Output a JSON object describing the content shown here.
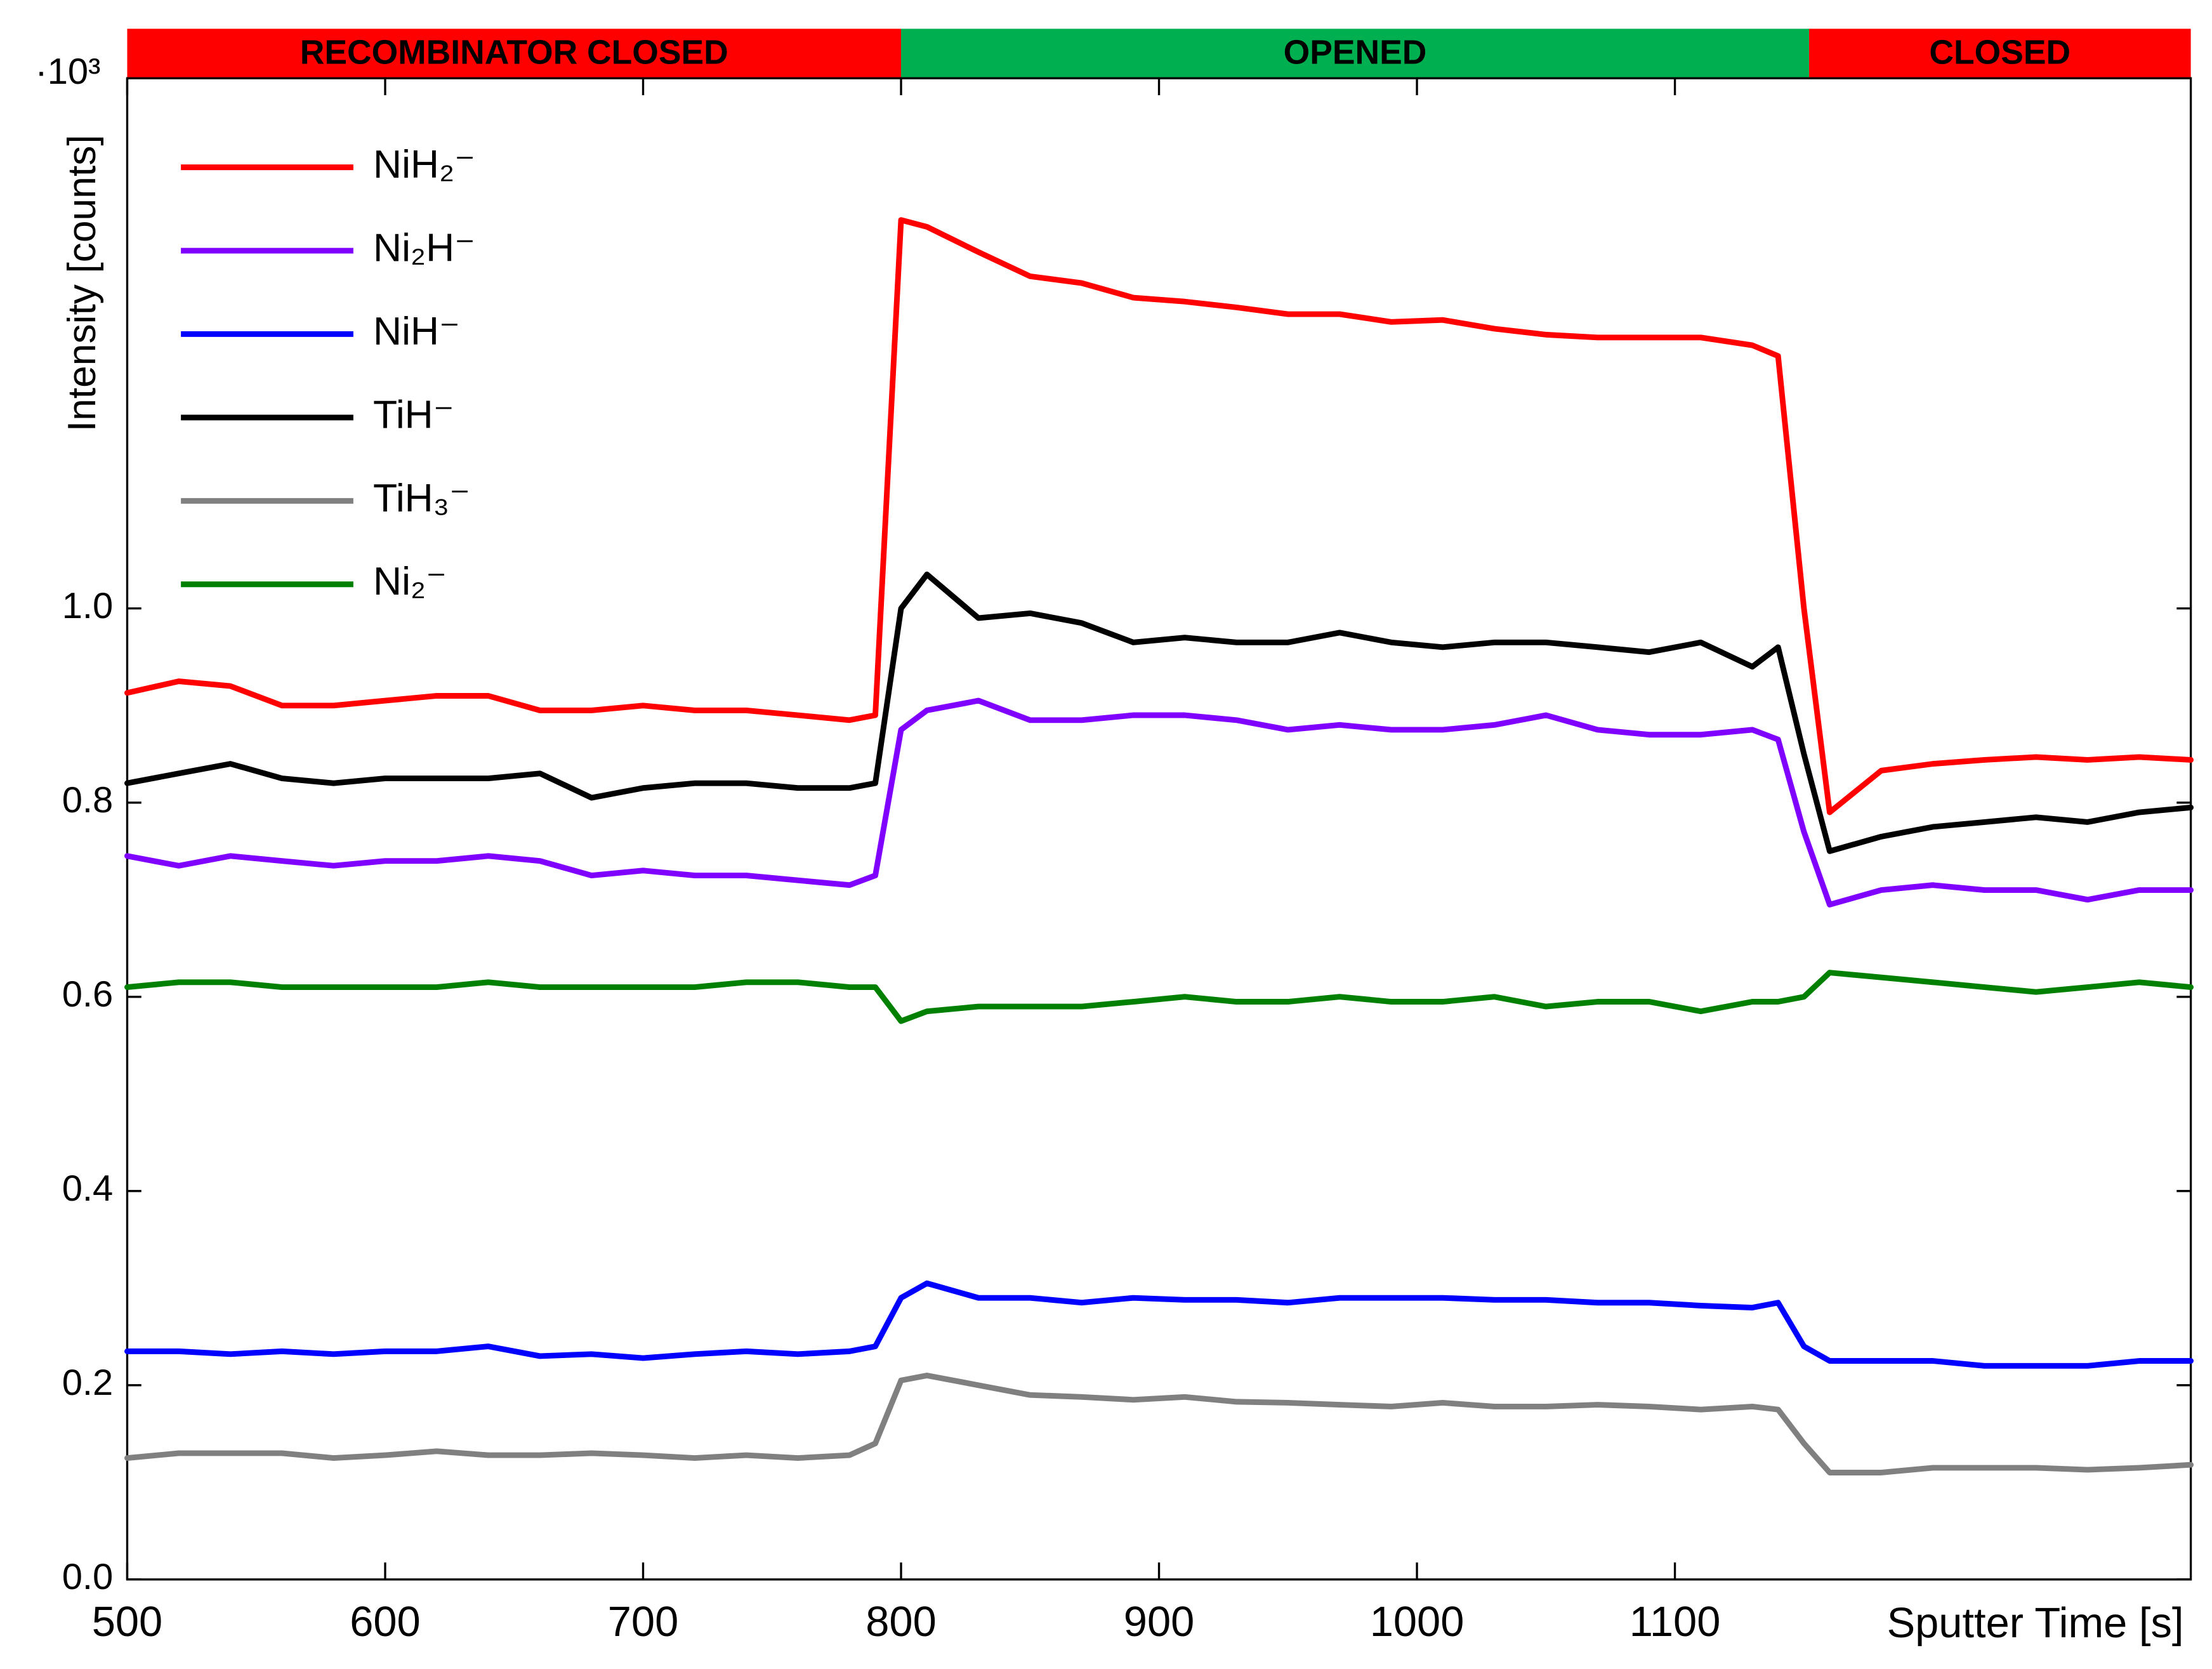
{
  "chart_data": {
    "type": "line",
    "y_label": "Intensity [counts]",
    "y_multiplier": "·10³",
    "x_label": "Sputter Time [s]",
    "xlim": [
      500,
      1300
    ],
    "xticks": [
      500,
      600,
      700,
      800,
      900,
      1000,
      1100
    ],
    "ylim": [
      0,
      1.546
    ],
    "yticks": [
      {
        "value": 0,
        "label": "0.0"
      },
      0.2,
      0.4,
      0.6,
      0.8,
      {
        "value": 1,
        "label": "1.0"
      }
    ],
    "phases": [
      {
        "label": "RECOMBINATOR CLOSED",
        "start": 500,
        "end": 800,
        "color": "#ff0000"
      },
      {
        "label": "OPENED",
        "start": 800,
        "end": 1152,
        "color": "#00b050"
      },
      {
        "label": "CLOSED",
        "start": 1152,
        "end": 1300,
        "color": "#ff0000"
      }
    ],
    "x": [
      500,
      520,
      540,
      560,
      580,
      600,
      620,
      640,
      660,
      680,
      700,
      720,
      740,
      760,
      780,
      790,
      800,
      810,
      830,
      850,
      870,
      890,
      910,
      930,
      950,
      970,
      990,
      1010,
      1030,
      1050,
      1070,
      1090,
      1110,
      1130,
      1140,
      1150,
      1160,
      1180,
      1200,
      1220,
      1240,
      1260,
      1280,
      1300
    ],
    "series": [
      {
        "name": "NiH₂⁻",
        "color": "#ff0000",
        "values": [
          0.913,
          0.925,
          0.92,
          0.9,
          0.9,
          0.905,
          0.91,
          0.91,
          0.895,
          0.895,
          0.9,
          0.895,
          0.895,
          0.89,
          0.885,
          0.89,
          1.4,
          1.393,
          1.367,
          1.342,
          1.335,
          1.32,
          1.316,
          1.31,
          1.303,
          1.303,
          1.295,
          1.297,
          1.288,
          1.282,
          1.279,
          1.279,
          1.279,
          1.271,
          1.26,
          1.0,
          0.79,
          0.833,
          0.84,
          0.844,
          0.847,
          0.844,
          0.847,
          0.844
        ]
      },
      {
        "name": "Ni₂H⁻",
        "color": "#8000ff",
        "values": [
          0.745,
          0.735,
          0.745,
          0.74,
          0.735,
          0.74,
          0.74,
          0.745,
          0.74,
          0.725,
          0.73,
          0.725,
          0.725,
          0.72,
          0.715,
          0.725,
          0.875,
          0.895,
          0.905,
          0.885,
          0.885,
          0.89,
          0.89,
          0.885,
          0.875,
          0.88,
          0.875,
          0.875,
          0.88,
          0.89,
          0.875,
          0.87,
          0.87,
          0.875,
          0.865,
          0.77,
          0.695,
          0.71,
          0.715,
          0.71,
          0.71,
          0.7,
          0.71,
          0.71
        ]
      },
      {
        "name": "NiH⁻",
        "color": "#0000ff",
        "values": [
          0.235,
          0.235,
          0.232,
          0.235,
          0.232,
          0.235,
          0.235,
          0.24,
          0.23,
          0.232,
          0.228,
          0.232,
          0.235,
          0.232,
          0.235,
          0.24,
          0.29,
          0.305,
          0.29,
          0.29,
          0.285,
          0.29,
          0.288,
          0.288,
          0.285,
          0.29,
          0.29,
          0.29,
          0.288,
          0.288,
          0.285,
          0.285,
          0.282,
          0.28,
          0.285,
          0.24,
          0.225,
          0.225,
          0.225,
          0.22,
          0.22,
          0.22,
          0.225,
          0.225
        ]
      },
      {
        "name": "TiH⁻",
        "color": "#000000",
        "values": [
          0.82,
          0.83,
          0.84,
          0.825,
          0.82,
          0.825,
          0.825,
          0.825,
          0.83,
          0.805,
          0.815,
          0.82,
          0.82,
          0.815,
          0.815,
          0.82,
          1.0,
          1.035,
          0.99,
          0.995,
          0.985,
          0.965,
          0.97,
          0.965,
          0.965,
          0.975,
          0.965,
          0.96,
          0.965,
          0.965,
          0.96,
          0.955,
          0.965,
          0.94,
          0.96,
          0.85,
          0.75,
          0.765,
          0.775,
          0.78,
          0.785,
          0.78,
          0.79,
          0.795
        ]
      },
      {
        "name": "TiH₃⁻",
        "color": "#808080",
        "values": [
          0.125,
          0.13,
          0.13,
          0.13,
          0.125,
          0.128,
          0.132,
          0.128,
          0.128,
          0.13,
          0.128,
          0.125,
          0.128,
          0.125,
          0.128,
          0.14,
          0.205,
          0.21,
          0.2,
          0.19,
          0.188,
          0.185,
          0.188,
          0.183,
          0.182,
          0.18,
          0.178,
          0.182,
          0.178,
          0.178,
          0.18,
          0.178,
          0.175,
          0.178,
          0.175,
          0.14,
          0.11,
          0.11,
          0.115,
          0.115,
          0.115,
          0.113,
          0.115,
          0.118
        ]
      },
      {
        "name": "Ni₂⁻",
        "color": "#008000",
        "values": [
          0.61,
          0.615,
          0.615,
          0.61,
          0.61,
          0.61,
          0.61,
          0.615,
          0.61,
          0.61,
          0.61,
          0.61,
          0.615,
          0.615,
          0.61,
          0.61,
          0.575,
          0.585,
          0.59,
          0.59,
          0.59,
          0.595,
          0.6,
          0.595,
          0.595,
          0.6,
          0.595,
          0.595,
          0.6,
          0.59,
          0.595,
          0.595,
          0.585,
          0.595,
          0.595,
          0.6,
          0.625,
          0.62,
          0.615,
          0.61,
          0.605,
          0.61,
          0.615,
          0.61
        ]
      }
    ]
  }
}
